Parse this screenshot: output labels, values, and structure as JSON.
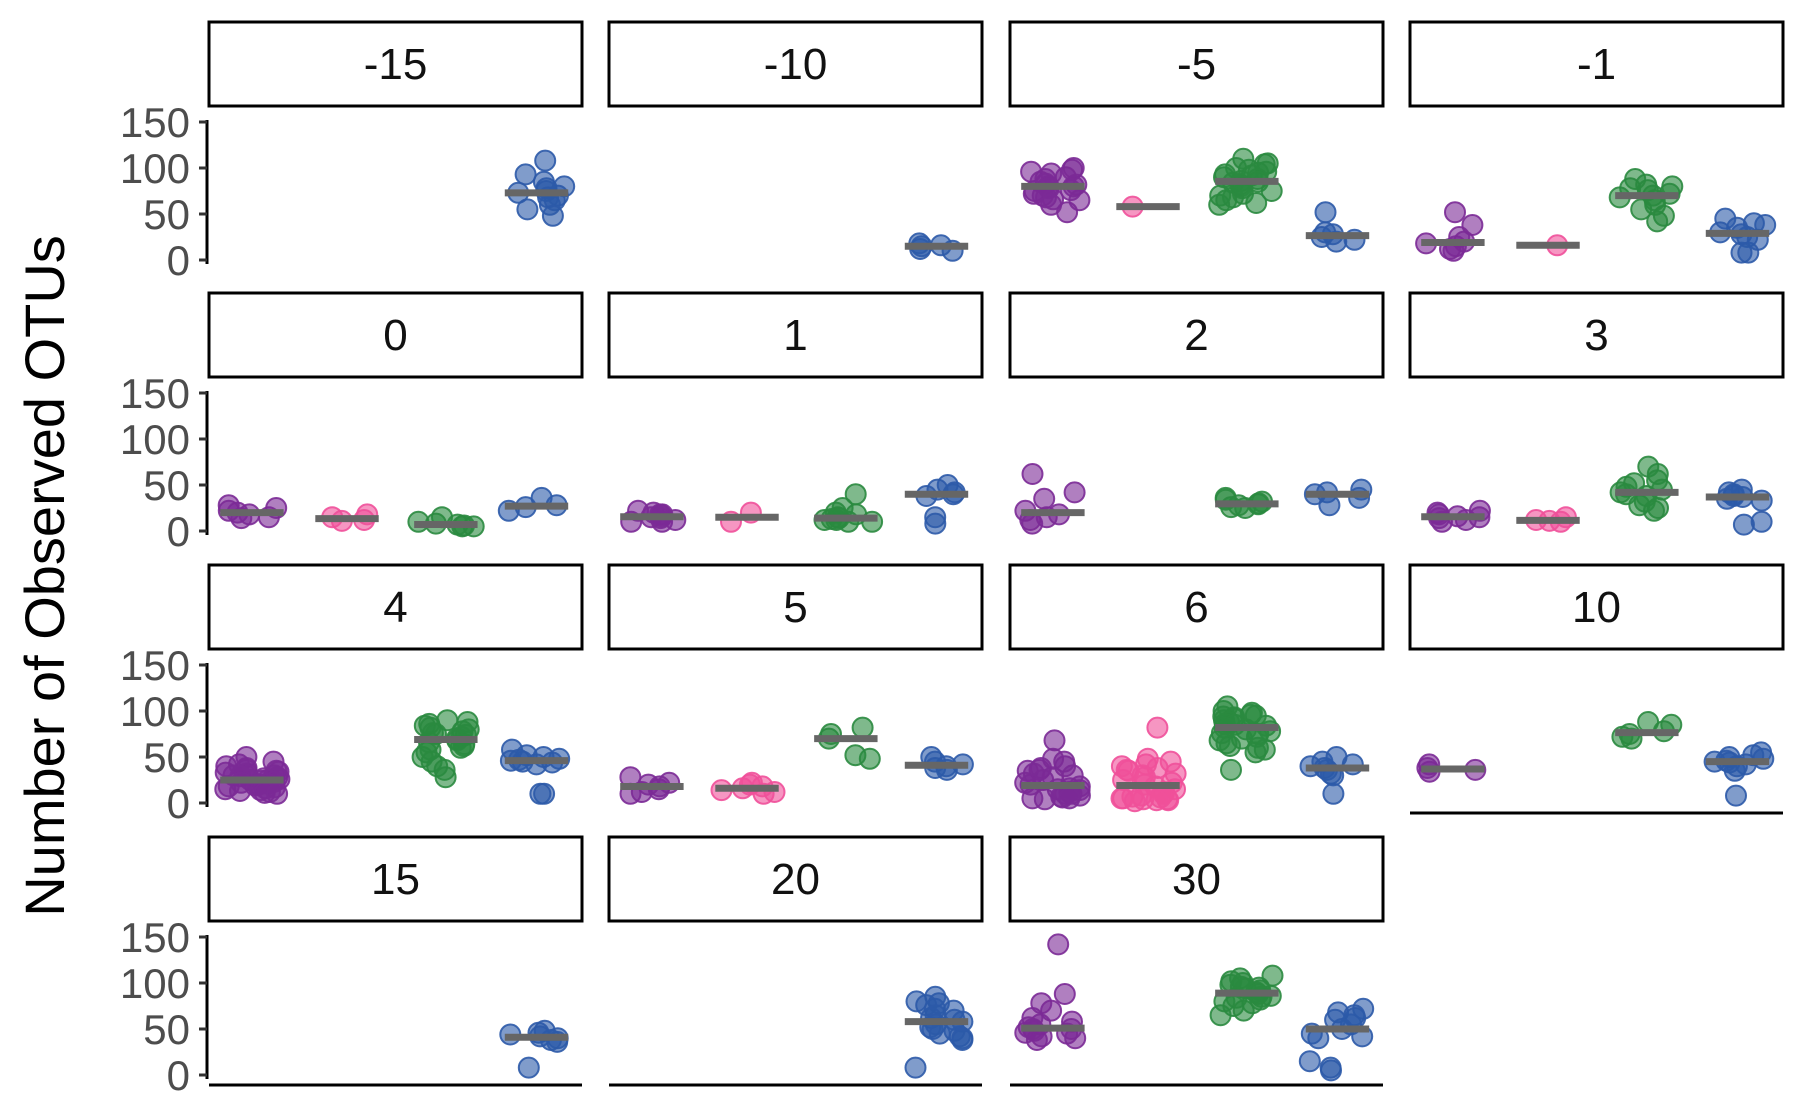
{
  "chart_data": {
    "type": "scatter",
    "title": "",
    "xlabel": "",
    "ylabel": "Number of Observed OTUs",
    "ylim": [
      0,
      150
    ],
    "yticks": [
      0,
      50,
      100,
      150
    ],
    "grid": false,
    "legend": "none",
    "group_colors": [
      "#7b2a96",
      "#f0509a",
      "#2a8a3f",
      "#2c5aa8"
    ],
    "median_color": "#666666",
    "panels": [
      {
        "label": "-15",
        "groups": [
          [],
          [],
          [],
          [
            108,
            93,
            85,
            80,
            78,
            75,
            73,
            70,
            68,
            65,
            60,
            55,
            48
          ]
        ]
      },
      {
        "label": "-10",
        "groups": [
          [],
          [],
          [],
          [
            18,
            16,
            15,
            12,
            10
          ]
        ]
      },
      {
        "label": "-5",
        "groups": [
          [
            100,
            98,
            96,
            94,
            90,
            88,
            85,
            83,
            82,
            80,
            80,
            78,
            76,
            75,
            72,
            70,
            68,
            66,
            65,
            60,
            52
          ],
          [
            58
          ],
          [
            110,
            105,
            104,
            100,
            98,
            96,
            95,
            93,
            92,
            90,
            88,
            86,
            85,
            84,
            82,
            80,
            78,
            75,
            72,
            70,
            68,
            65,
            62,
            60
          ],
          [
            52,
            30,
            28,
            25,
            22,
            20
          ]
        ]
      },
      {
        "label": "-1",
        "groups": [
          [
            52,
            38,
            25,
            20,
            18,
            15,
            12,
            10
          ],
          [
            16
          ],
          [
            88,
            82,
            80,
            78,
            76,
            72,
            70,
            68,
            65,
            60,
            55,
            48,
            42
          ],
          [
            45,
            40,
            38,
            35,
            30,
            28,
            25,
            22,
            8,
            8
          ]
        ]
      },
      {
        "label": "0",
        "groups": [
          [
            28,
            25,
            22,
            20,
            18,
            15,
            14
          ],
          [
            18,
            15,
            12,
            11
          ],
          [
            15,
            10,
            8,
            7,
            6,
            5,
            5
          ],
          [
            36,
            28,
            26,
            22
          ]
        ]
      },
      {
        "label": "1",
        "groups": [
          [
            22,
            20,
            18,
            18,
            16,
            15,
            14,
            12,
            10,
            10
          ],
          [
            20,
            10
          ],
          [
            40,
            25,
            20,
            18,
            15,
            14,
            13,
            12,
            12,
            10,
            10
          ],
          [
            50,
            45,
            42,
            40,
            38,
            15,
            8
          ]
        ]
      },
      {
        "label": "2",
        "groups": [
          [
            62,
            42,
            35,
            22,
            18,
            15,
            12,
            8
          ],
          [],
          [
            36,
            34,
            32,
            30,
            29,
            28,
            26,
            25
          ],
          [
            45,
            42,
            40,
            36,
            28
          ]
        ]
      },
      {
        "label": "3",
        "groups": [
          [
            22,
            20,
            18,
            16,
            15,
            14,
            12,
            10
          ],
          [
            15,
            12,
            11,
            10
          ],
          [
            70,
            62,
            55,
            52,
            48,
            45,
            42,
            40,
            38,
            32,
            28,
            25,
            22
          ],
          [
            45,
            42,
            40,
            38,
            37,
            35,
            33,
            10,
            7
          ]
        ]
      },
      {
        "label": "4",
        "groups": [
          [
            50,
            45,
            42,
            40,
            38,
            36,
            35,
            34,
            33,
            32,
            31,
            30,
            30,
            29,
            28,
            27,
            26,
            25,
            25,
            24,
            23,
            22,
            21,
            20,
            20,
            19,
            18,
            17,
            16,
            15,
            14,
            13,
            12,
            11,
            10
          ],
          [],
          [
            90,
            88,
            86,
            84,
            82,
            80,
            78,
            76,
            75,
            74,
            72,
            70,
            68,
            66,
            64,
            62,
            60,
            58,
            55,
            50,
            45,
            40,
            36,
            28
          ],
          [
            58,
            52,
            50,
            48,
            47,
            46,
            45,
            44,
            42,
            10,
            10
          ]
        ]
      },
      {
        "label": "5",
        "groups": [
          [
            28,
            22,
            20,
            18,
            15,
            12,
            10
          ],
          [
            22,
            20,
            18,
            16,
            14,
            12,
            10
          ],
          [
            82,
            75,
            70,
            52,
            48
          ],
          [
            50,
            45,
            42,
            40,
            38,
            36
          ]
        ]
      },
      {
        "label": "6",
        "groups": [
          [
            68,
            48,
            45,
            40,
            38,
            36,
            35,
            32,
            30,
            28,
            25,
            22,
            20,
            18,
            16,
            15,
            14,
            12,
            10,
            10,
            8,
            7,
            6,
            5,
            5,
            4
          ],
          [
            82,
            48,
            45,
            42,
            40,
            38,
            36,
            35,
            32,
            30,
            28,
            25,
            22,
            20,
            18,
            15,
            12,
            10,
            8,
            7,
            6,
            5,
            5,
            4,
            4,
            3,
            3,
            2
          ],
          [
            105,
            100,
            98,
            96,
            95,
            94,
            93,
            92,
            90,
            88,
            86,
            85,
            84,
            82,
            80,
            78,
            76,
            75,
            72,
            70,
            68,
            65,
            62,
            60,
            58,
            55,
            36
          ],
          [
            50,
            45,
            42,
            40,
            38,
            36,
            32,
            30,
            10
          ]
        ]
      },
      {
        "label": "10",
        "groups": [
          [
            42,
            38,
            36,
            34
          ],
          [],
          [
            88,
            85,
            78,
            75,
            72,
            70
          ],
          [
            55,
            52,
            50,
            48,
            46,
            45,
            44,
            42,
            40,
            35,
            8
          ]
        ]
      },
      {
        "label": "15",
        "groups": [
          [],
          [],
          [],
          [
            48,
            46,
            44,
            42,
            40,
            38,
            36,
            8
          ]
        ]
      },
      {
        "label": "20",
        "groups": [
          [],
          [],
          [],
          [
            85,
            80,
            78,
            76,
            72,
            70,
            65,
            62,
            60,
            58,
            55,
            52,
            50,
            48,
            45,
            42,
            40,
            38,
            8
          ]
        ]
      },
      {
        "label": "30",
        "groups": [
          [
            142,
            88,
            78,
            70,
            62,
            58,
            55,
            52,
            50,
            50,
            48,
            46,
            45,
            42,
            40,
            38
          ],
          [],
          [
            108,
            105,
            102,
            100,
            98,
            96,
            95,
            94,
            92,
            90,
            88,
            86,
            85,
            84,
            82,
            80,
            78,
            75,
            70,
            65
          ],
          [
            72,
            68,
            65,
            62,
            60,
            55,
            50,
            45,
            42,
            40,
            15,
            8,
            5
          ]
        ]
      }
    ]
  }
}
